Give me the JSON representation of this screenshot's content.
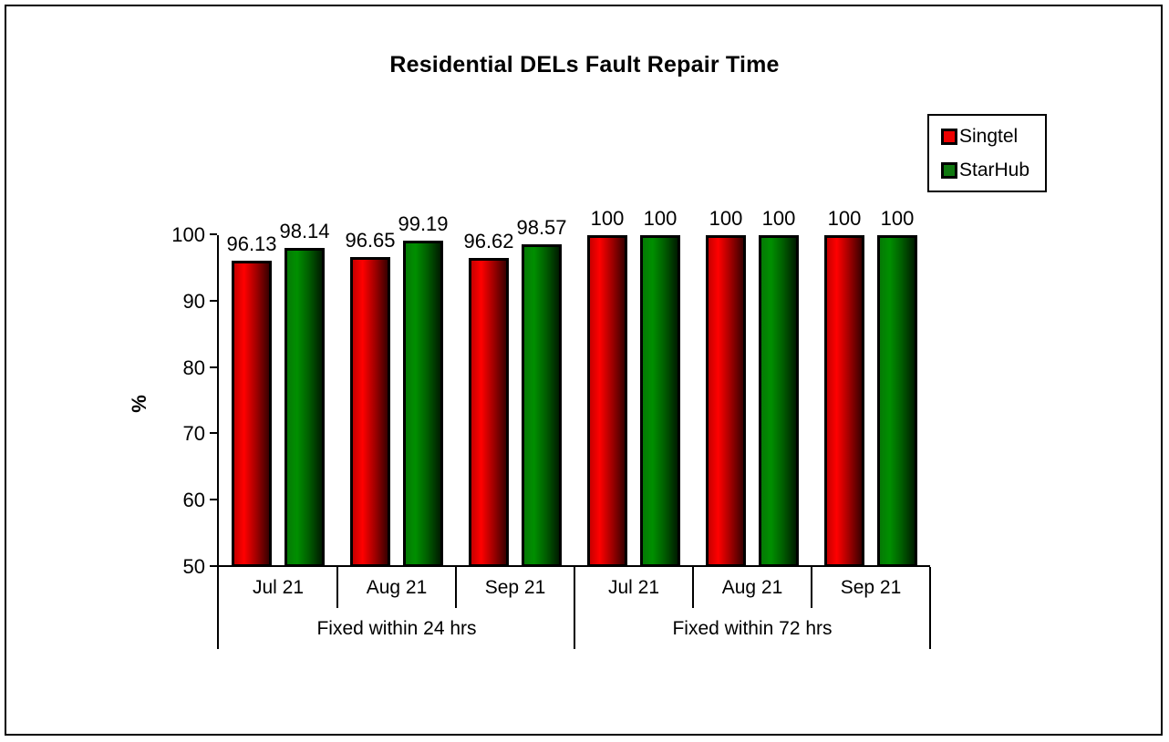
{
  "chart_data": {
    "type": "bar",
    "title": "Residential DELs Fault Repair Time",
    "ylabel": "%",
    "ylim": [
      50,
      100
    ],
    "yticks": [
      50,
      60,
      70,
      80,
      90,
      100
    ],
    "grid": false,
    "legend_position": "top-right",
    "groups": [
      "Fixed within 24 hrs",
      "Fixed within 72 hrs"
    ],
    "categories": [
      "Jul 21",
      "Aug 21",
      "Sep 21",
      "Jul 21",
      "Aug 21",
      "Sep 21"
    ],
    "category_group_index": [
      0,
      0,
      0,
      1,
      1,
      1
    ],
    "series": [
      {
        "name": "Singtel",
        "color": "#ee0000",
        "values": [
          96.13,
          96.65,
          96.62,
          100,
          100,
          100
        ]
      },
      {
        "name": "StarHub",
        "color": "#107810",
        "values": [
          98.14,
          99.19,
          98.57,
          100,
          100,
          100
        ]
      }
    ],
    "bar_data_labels": [
      "96.13",
      "98.14",
      "96.65",
      "99.19",
      "96.62",
      "98.57",
      "100"
    ],
    "colors": {
      "singtel_bright": "#ff0000",
      "singtel_dark": "#3a0000",
      "starhub_bright": "#008f00",
      "starhub_dark": "#001c00",
      "axis": "#000000",
      "background": "#ffffff"
    }
  }
}
